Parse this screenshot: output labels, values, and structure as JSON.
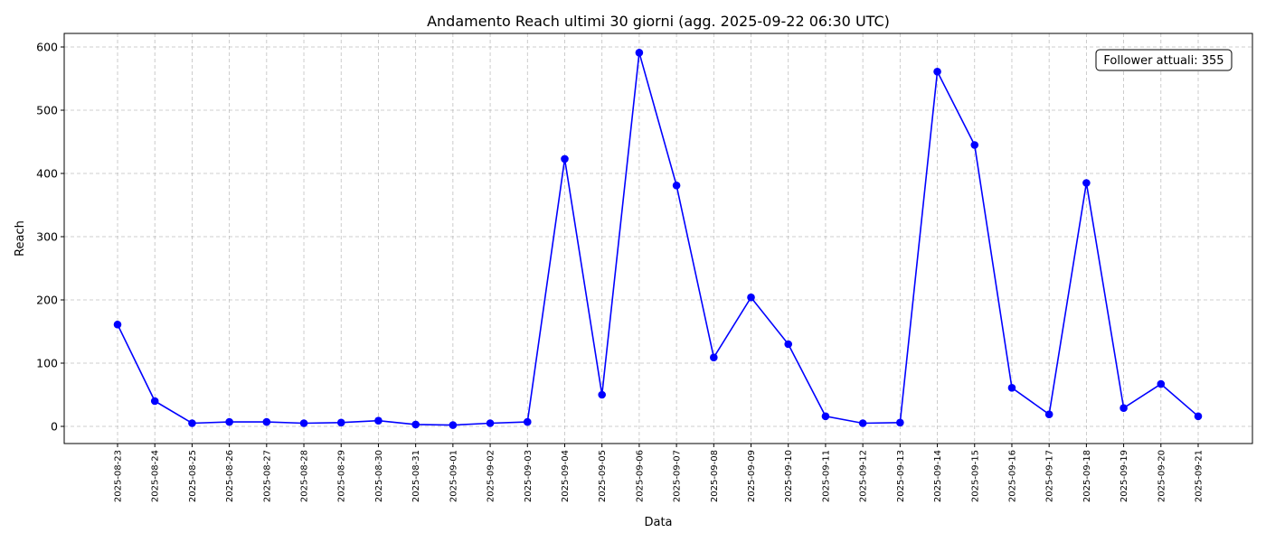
{
  "chart_data": {
    "type": "line",
    "title": "Andamento Reach ultimi 30 giorni (agg. 2025-09-22 06:30 UTC)",
    "xlabel": "Data",
    "ylabel": "Reach",
    "ylim": [
      -27,
      621
    ],
    "yticks": [
      0,
      100,
      200,
      300,
      400,
      500,
      600
    ],
    "grid": true,
    "annotation": {
      "text": "Follower attuali: 355",
      "placement": "top-right"
    },
    "x": [
      "2025-08-23",
      "2025-08-24",
      "2025-08-25",
      "2025-08-26",
      "2025-08-27",
      "2025-08-28",
      "2025-08-29",
      "2025-08-30",
      "2025-08-31",
      "2025-09-01",
      "2025-09-02",
      "2025-09-03",
      "2025-09-04",
      "2025-09-05",
      "2025-09-06",
      "2025-09-07",
      "2025-09-08",
      "2025-09-09",
      "2025-09-10",
      "2025-09-11",
      "2025-09-12",
      "2025-09-13",
      "2025-09-14",
      "2025-09-15",
      "2025-09-16",
      "2025-09-17",
      "2025-09-18",
      "2025-09-19",
      "2025-09-20",
      "2025-09-21"
    ],
    "series": [
      {
        "color": "#0000ff",
        "values": [
          161,
          40,
          5,
          7,
          7,
          5,
          6,
          9,
          3,
          2,
          5,
          7,
          423,
          50,
          591,
          381,
          109,
          204,
          130,
          16,
          5,
          6,
          561,
          445,
          61,
          19,
          385,
          29,
          67,
          16
        ]
      }
    ]
  }
}
